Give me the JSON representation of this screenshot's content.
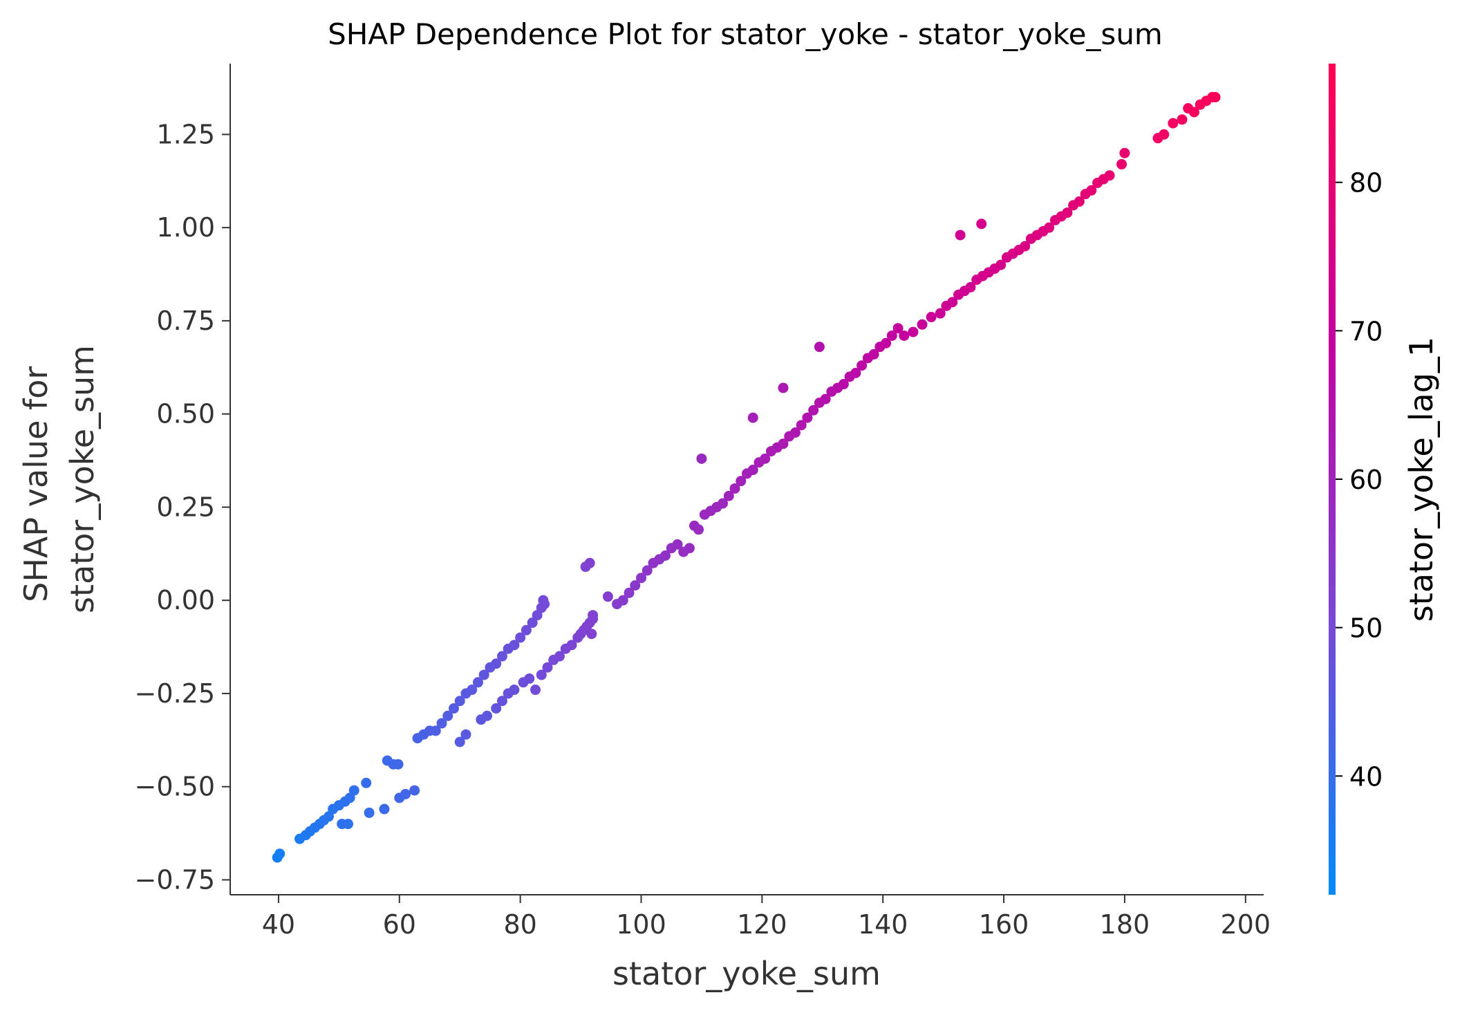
{
  "chart_data": {
    "type": "scatter",
    "title": "SHAP Dependence Plot for stator_yoke - stator_yoke_sum",
    "xlabel": "stator_yoke_sum",
    "ylabel_lines": [
      "SHAP value for",
      "stator_yoke_sum"
    ],
    "xlim": [
      32,
      203
    ],
    "ylim": [
      -0.79,
      1.44
    ],
    "x_ticks": [
      40,
      60,
      80,
      100,
      120,
      140,
      160,
      180,
      200
    ],
    "x_tick_labels": [
      "40",
      "60",
      "80",
      "100",
      "120",
      "140",
      "160",
      "180",
      "200"
    ],
    "y_ticks": [
      -0.75,
      -0.5,
      -0.25,
      0.0,
      0.25,
      0.5,
      0.75,
      1.0,
      1.25
    ],
    "y_tick_labels": [
      "−0.75",
      "−0.50",
      "−0.25",
      "0.00",
      "0.25",
      "0.50",
      "0.75",
      "1.00",
      "1.25"
    ],
    "grid": false,
    "colorbar": {
      "label": "stator_yoke_lag_1",
      "range": [
        32,
        88
      ],
      "ticks": [
        40,
        50,
        60,
        70,
        80
      ],
      "tick_labels": [
        "40",
        "50",
        "60",
        "70",
        "80"
      ],
      "colormap_stops": [
        "#008afb",
        "#7a47d6",
        "#c5009f",
        "#ff0052"
      ]
    },
    "series": [
      {
        "color_by": "stator_yoke_lag_1",
        "points": [
          [
            39.8,
            -0.69
          ],
          [
            40.2,
            -0.68
          ],
          [
            43.5,
            -0.64
          ],
          [
            44.5,
            -0.63
          ],
          [
            45.2,
            -0.62
          ],
          [
            46.0,
            -0.61
          ],
          [
            46.8,
            -0.6
          ],
          [
            47.5,
            -0.59
          ],
          [
            48.3,
            -0.58
          ],
          [
            49.0,
            -0.56
          ],
          [
            50.0,
            -0.55
          ],
          [
            51.0,
            -0.54
          ],
          [
            51.8,
            -0.53
          ],
          [
            52.5,
            -0.51
          ],
          [
            54.5,
            -0.49
          ],
          [
            50.5,
            -0.6
          ],
          [
            51.5,
            -0.6
          ],
          [
            55.0,
            -0.57
          ],
          [
            57.5,
            -0.56
          ],
          [
            60.0,
            -0.53
          ],
          [
            61.0,
            -0.52
          ],
          [
            62.5,
            -0.51
          ],
          [
            59.0,
            -0.44
          ],
          [
            59.8,
            -0.44
          ],
          [
            58.0,
            -0.43
          ],
          [
            63.0,
            -0.37
          ],
          [
            64.0,
            -0.36
          ],
          [
            65.0,
            -0.35
          ],
          [
            66.0,
            -0.35
          ],
          [
            67.0,
            -0.33
          ],
          [
            68.0,
            -0.31
          ],
          [
            69.0,
            -0.29
          ],
          [
            70.0,
            -0.27
          ],
          [
            71.0,
            -0.25
          ],
          [
            72.0,
            -0.24
          ],
          [
            73.0,
            -0.22
          ],
          [
            74.0,
            -0.2
          ],
          [
            75.0,
            -0.18
          ],
          [
            76.0,
            -0.17
          ],
          [
            77.0,
            -0.15
          ],
          [
            78.0,
            -0.13
          ],
          [
            79.0,
            -0.12
          ],
          [
            80.0,
            -0.1
          ],
          [
            81.0,
            -0.08
          ],
          [
            82.0,
            -0.06
          ],
          [
            82.8,
            -0.04
          ],
          [
            83.5,
            -0.02
          ],
          [
            84.0,
            -0.01
          ],
          [
            83.8,
            0.0
          ],
          [
            70.0,
            -0.38
          ],
          [
            71.0,
            -0.36
          ],
          [
            73.5,
            -0.32
          ],
          [
            74.5,
            -0.31
          ],
          [
            76.0,
            -0.29
          ],
          [
            77.0,
            -0.27
          ],
          [
            78.0,
            -0.25
          ],
          [
            79.0,
            -0.24
          ],
          [
            80.5,
            -0.22
          ],
          [
            81.5,
            -0.21
          ],
          [
            82.5,
            -0.24
          ],
          [
            83.5,
            -0.2
          ],
          [
            84.5,
            -0.18
          ],
          [
            85.5,
            -0.16
          ],
          [
            86.5,
            -0.15
          ],
          [
            87.5,
            -0.13
          ],
          [
            88.5,
            -0.12
          ],
          [
            89.5,
            -0.1
          ],
          [
            90.0,
            -0.09
          ],
          [
            90.5,
            -0.08
          ],
          [
            91.0,
            -0.07
          ],
          [
            91.5,
            -0.06
          ],
          [
            92.0,
            -0.05
          ],
          [
            92.0,
            -0.04
          ],
          [
            91.8,
            -0.09
          ],
          [
            90.8,
            0.09
          ],
          [
            91.5,
            0.1
          ],
          [
            94.5,
            0.01
          ],
          [
            96.0,
            -0.01
          ],
          [
            97.0,
            0.0
          ],
          [
            98.0,
            0.02
          ],
          [
            99.0,
            0.04
          ],
          [
            100.0,
            0.06
          ],
          [
            101.0,
            0.08
          ],
          [
            102.0,
            0.1
          ],
          [
            103.0,
            0.11
          ],
          [
            104.0,
            0.12
          ],
          [
            105.0,
            0.14
          ],
          [
            106.0,
            0.15
          ],
          [
            107.0,
            0.13
          ],
          [
            108.0,
            0.14
          ],
          [
            108.8,
            0.2
          ],
          [
            109.5,
            0.19
          ],
          [
            110.0,
            0.38
          ],
          [
            110.5,
            0.23
          ],
          [
            111.5,
            0.24
          ],
          [
            112.5,
            0.25
          ],
          [
            113.5,
            0.26
          ],
          [
            114.5,
            0.28
          ],
          [
            115.5,
            0.3
          ],
          [
            116.5,
            0.32
          ],
          [
            117.5,
            0.34
          ],
          [
            118.5,
            0.35
          ],
          [
            119.5,
            0.37
          ],
          [
            120.5,
            0.38
          ],
          [
            121.5,
            0.4
          ],
          [
            122.5,
            0.41
          ],
          [
            123.5,
            0.42
          ],
          [
            124.5,
            0.44
          ],
          [
            125.5,
            0.45
          ],
          [
            126.5,
            0.47
          ],
          [
            127.5,
            0.49
          ],
          [
            128.5,
            0.51
          ],
          [
            129.5,
            0.53
          ],
          [
            130.5,
            0.54
          ],
          [
            131.5,
            0.56
          ],
          [
            132.5,
            0.57
          ],
          [
            133.5,
            0.58
          ],
          [
            134.5,
            0.6
          ],
          [
            135.5,
            0.61
          ],
          [
            136.5,
            0.63
          ],
          [
            137.5,
            0.65
          ],
          [
            138.5,
            0.66
          ],
          [
            139.5,
            0.68
          ],
          [
            140.5,
            0.69
          ],
          [
            141.5,
            0.71
          ],
          [
            142.5,
            0.73
          ],
          [
            143.5,
            0.71
          ],
          [
            145.0,
            0.72
          ],
          [
            146.5,
            0.74
          ],
          [
            148.0,
            0.76
          ],
          [
            149.5,
            0.77
          ],
          [
            150.5,
            0.79
          ],
          [
            151.5,
            0.8
          ],
          [
            152.5,
            0.82
          ],
          [
            153.5,
            0.83
          ],
          [
            154.5,
            0.84
          ],
          [
            155.5,
            0.86
          ],
          [
            156.5,
            0.87
          ],
          [
            157.5,
            0.88
          ],
          [
            158.5,
            0.89
          ],
          [
            159.5,
            0.9
          ],
          [
            160.5,
            0.92
          ],
          [
            161.5,
            0.93
          ],
          [
            162.5,
            0.94
          ],
          [
            163.5,
            0.95
          ],
          [
            164.5,
            0.97
          ],
          [
            165.5,
            0.98
          ],
          [
            166.5,
            0.99
          ],
          [
            167.5,
            1.0
          ],
          [
            168.5,
            1.02
          ],
          [
            169.5,
            1.03
          ],
          [
            170.5,
            1.04
          ],
          [
            171.5,
            1.06
          ],
          [
            172.5,
            1.07
          ],
          [
            173.5,
            1.09
          ],
          [
            174.5,
            1.1
          ],
          [
            175.5,
            1.12
          ],
          [
            176.5,
            1.13
          ],
          [
            177.5,
            1.14
          ],
          [
            179.5,
            1.17
          ],
          [
            180.0,
            1.2
          ],
          [
            185.5,
            1.24
          ],
          [
            186.5,
            1.25
          ],
          [
            188.0,
            1.28
          ],
          [
            189.5,
            1.29
          ],
          [
            190.5,
            1.32
          ],
          [
            191.5,
            1.31
          ],
          [
            192.5,
            1.33
          ],
          [
            193.5,
            1.34
          ],
          [
            194.5,
            1.35
          ],
          [
            195.0,
            1.35
          ],
          [
            118.5,
            0.49
          ],
          [
            123.5,
            0.57
          ],
          [
            129.5,
            0.68
          ],
          [
            152.8,
            0.98
          ],
          [
            156.3,
            1.01
          ]
        ]
      }
    ]
  }
}
